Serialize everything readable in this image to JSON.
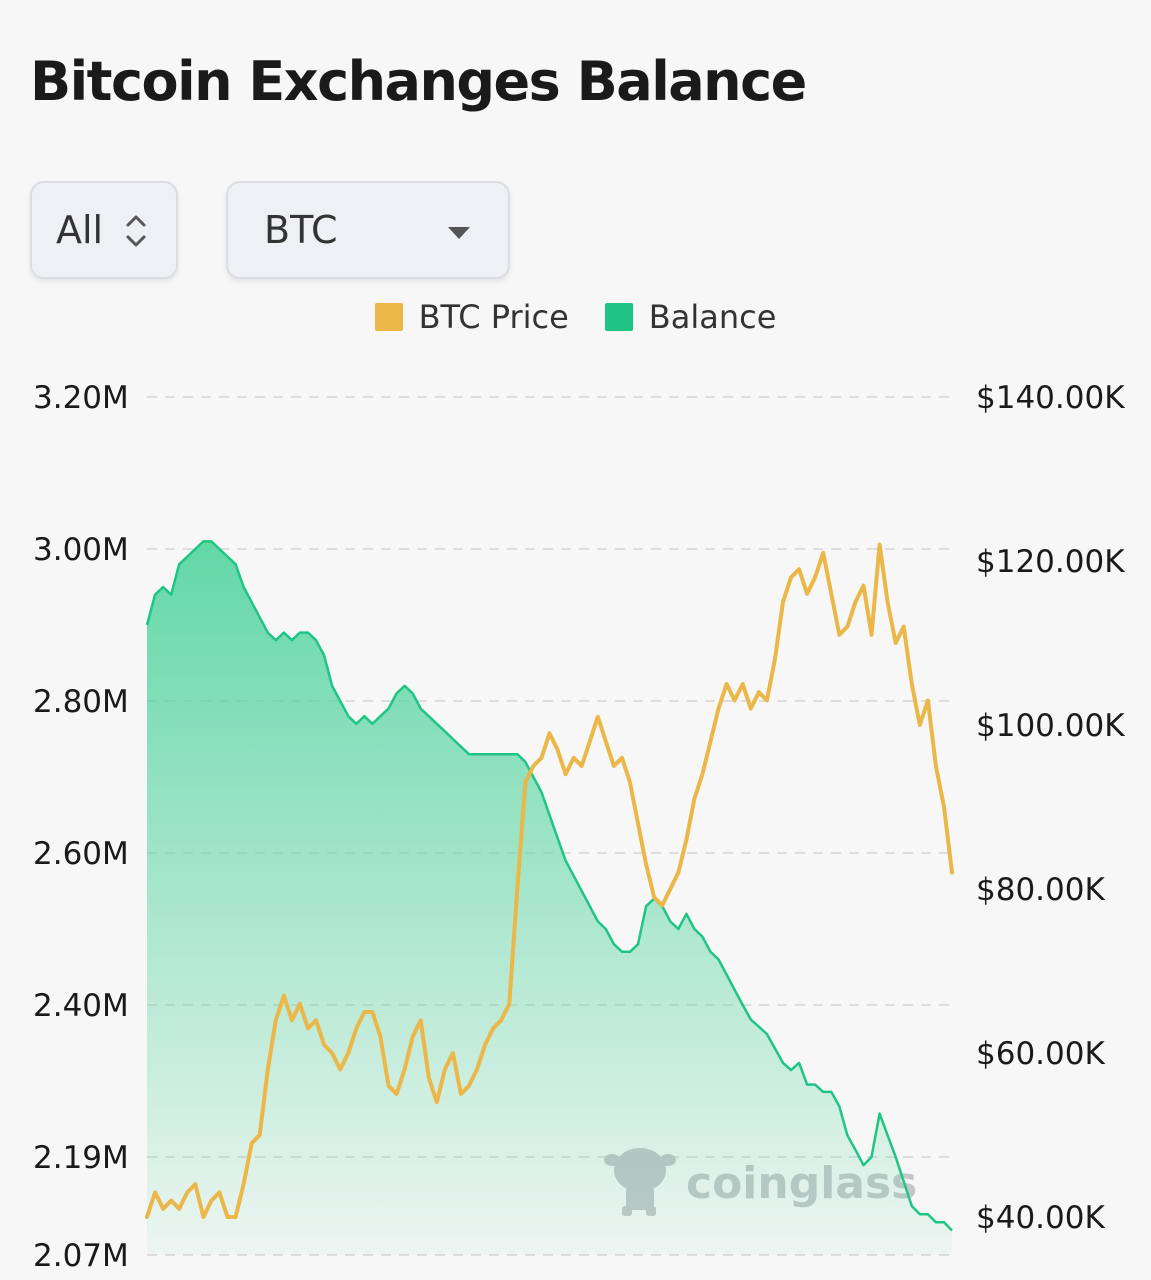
{
  "header": {
    "title": "Bitcoin Exchanges Balance"
  },
  "controls": {
    "range_select": {
      "value": "All",
      "icon": "updown-chevron-icon"
    },
    "coin_select": {
      "value": "BTC",
      "icon": "caret-down-icon"
    }
  },
  "watermark": {
    "text": "coinglass",
    "icon": "bull-mascot-icon"
  },
  "colors": {
    "price": "#ebb748",
    "balance": "#1fc584",
    "balance_fill_top": "#52d49e",
    "grid": "#dddddd"
  },
  "chart_data": {
    "type": "line",
    "legend": [
      "BTC Price",
      "Balance"
    ],
    "legend_position": "top-center",
    "grid": true,
    "x_range": [
      0,
      100
    ],
    "left_axis": {
      "ticks": [
        "3.20M",
        "3.00M",
        "2.80M",
        "2.60M",
        "2.40M",
        "2.19M",
        "2.07M"
      ],
      "tick_values": [
        3.2,
        3.0,
        2.8,
        2.6,
        2.4,
        2.19,
        2.07
      ],
      "unit": "M BTC"
    },
    "right_axis": {
      "ticks": [
        "$140.00K",
        "$120.00K",
        "$100.00K",
        "$80.00K",
        "$60.00K",
        "$40.00K"
      ],
      "tick_values": [
        140,
        120,
        100,
        80,
        60,
        40
      ],
      "unit": "K USD"
    },
    "series": [
      {
        "name": "Balance",
        "type": "area",
        "axis": "left",
        "color": "#1fc584",
        "points": [
          [
            0,
            2.9
          ],
          [
            1,
            2.94
          ],
          [
            2,
            2.95
          ],
          [
            3,
            2.94
          ],
          [
            4,
            2.98
          ],
          [
            5,
            2.99
          ],
          [
            6,
            3.0
          ],
          [
            7,
            3.01
          ],
          [
            8,
            3.01
          ],
          [
            9,
            3.0
          ],
          [
            10,
            2.99
          ],
          [
            11,
            2.98
          ],
          [
            12,
            2.95
          ],
          [
            13,
            2.93
          ],
          [
            14,
            2.91
          ],
          [
            15,
            2.89
          ],
          [
            16,
            2.88
          ],
          [
            17,
            2.89
          ],
          [
            18,
            2.88
          ],
          [
            19,
            2.89
          ],
          [
            20,
            2.89
          ],
          [
            21,
            2.88
          ],
          [
            22,
            2.86
          ],
          [
            23,
            2.82
          ],
          [
            24,
            2.8
          ],
          [
            25,
            2.78
          ],
          [
            26,
            2.77
          ],
          [
            27,
            2.78
          ],
          [
            28,
            2.77
          ],
          [
            29,
            2.78
          ],
          [
            30,
            2.79
          ],
          [
            31,
            2.81
          ],
          [
            32,
            2.82
          ],
          [
            33,
            2.81
          ],
          [
            34,
            2.79
          ],
          [
            35,
            2.78
          ],
          [
            36,
            2.77
          ],
          [
            37,
            2.76
          ],
          [
            38,
            2.75
          ],
          [
            39,
            2.74
          ],
          [
            40,
            2.73
          ],
          [
            41,
            2.73
          ],
          [
            42,
            2.73
          ],
          [
            43,
            2.73
          ],
          [
            44,
            2.73
          ],
          [
            45,
            2.73
          ],
          [
            46,
            2.73
          ],
          [
            47,
            2.72
          ],
          [
            48,
            2.7
          ],
          [
            49,
            2.68
          ],
          [
            50,
            2.65
          ],
          [
            51,
            2.62
          ],
          [
            52,
            2.59
          ],
          [
            53,
            2.57
          ],
          [
            54,
            2.55
          ],
          [
            55,
            2.53
          ],
          [
            56,
            2.51
          ],
          [
            57,
            2.5
          ],
          [
            58,
            2.48
          ],
          [
            59,
            2.47
          ],
          [
            60,
            2.47
          ],
          [
            61,
            2.48
          ],
          [
            62,
            2.53
          ],
          [
            63,
            2.54
          ],
          [
            64,
            2.53
          ],
          [
            65,
            2.51
          ],
          [
            66,
            2.5
          ],
          [
            67,
            2.52
          ],
          [
            68,
            2.5
          ],
          [
            69,
            2.49
          ],
          [
            70,
            2.47
          ],
          [
            71,
            2.46
          ],
          [
            72,
            2.44
          ],
          [
            73,
            2.42
          ],
          [
            74,
            2.4
          ],
          [
            75,
            2.38
          ],
          [
            76,
            2.37
          ],
          [
            77,
            2.36
          ],
          [
            78,
            2.34
          ],
          [
            79,
            2.32
          ],
          [
            80,
            2.31
          ],
          [
            81,
            2.32
          ],
          [
            82,
            2.29
          ],
          [
            83,
            2.29
          ],
          [
            84,
            2.28
          ],
          [
            85,
            2.28
          ],
          [
            86,
            2.26
          ],
          [
            87,
            2.22
          ],
          [
            88,
            2.2
          ],
          [
            89,
            2.18
          ],
          [
            90,
            2.19
          ],
          [
            91,
            2.25
          ],
          [
            92,
            2.22
          ],
          [
            93,
            2.19
          ],
          [
            94,
            2.16
          ],
          [
            95,
            2.13
          ],
          [
            96,
            2.12
          ],
          [
            97,
            2.12
          ],
          [
            98,
            2.11
          ],
          [
            99,
            2.11
          ],
          [
            100,
            2.1
          ]
        ]
      },
      {
        "name": "BTC Price",
        "type": "line",
        "axis": "right",
        "color": "#ebb748",
        "points": [
          [
            0,
            40
          ],
          [
            1,
            43
          ],
          [
            2,
            41
          ],
          [
            3,
            42
          ],
          [
            4,
            41
          ],
          [
            5,
            43
          ],
          [
            6,
            44
          ],
          [
            7,
            40
          ],
          [
            8,
            42
          ],
          [
            9,
            43
          ],
          [
            10,
            40
          ],
          [
            11,
            39
          ],
          [
            12,
            44
          ],
          [
            13,
            49
          ],
          [
            14,
            50
          ],
          [
            15,
            58
          ],
          [
            16,
            64
          ],
          [
            17,
            67
          ],
          [
            18,
            64
          ],
          [
            19,
            66
          ],
          [
            20,
            63
          ],
          [
            21,
            64
          ],
          [
            22,
            61
          ],
          [
            23,
            60
          ],
          [
            24,
            58
          ],
          [
            25,
            60
          ],
          [
            26,
            63
          ],
          [
            27,
            65
          ],
          [
            28,
            65
          ],
          [
            29,
            62
          ],
          [
            30,
            56
          ],
          [
            31,
            55
          ],
          [
            32,
            58
          ],
          [
            33,
            62
          ],
          [
            34,
            64
          ],
          [
            35,
            57
          ],
          [
            36,
            54
          ],
          [
            37,
            58
          ],
          [
            38,
            60
          ],
          [
            39,
            55
          ],
          [
            40,
            56
          ],
          [
            41,
            58
          ],
          [
            42,
            61
          ],
          [
            43,
            63
          ],
          [
            44,
            64
          ],
          [
            45,
            66
          ],
          [
            46,
            80
          ],
          [
            47,
            93
          ],
          [
            48,
            95
          ],
          [
            49,
            96
          ],
          [
            50,
            99
          ],
          [
            51,
            97
          ],
          [
            52,
            94
          ],
          [
            53,
            96
          ],
          [
            54,
            95
          ],
          [
            55,
            98
          ],
          [
            56,
            101
          ],
          [
            57,
            98
          ],
          [
            58,
            95
          ],
          [
            59,
            96
          ],
          [
            60,
            93
          ],
          [
            61,
            88
          ],
          [
            62,
            83
          ],
          [
            63,
            79
          ],
          [
            64,
            78
          ],
          [
            65,
            80
          ],
          [
            66,
            82
          ],
          [
            67,
            86
          ],
          [
            68,
            91
          ],
          [
            69,
            94
          ],
          [
            70,
            98
          ],
          [
            71,
            102
          ],
          [
            72,
            105
          ],
          [
            73,
            103
          ],
          [
            74,
            105
          ],
          [
            75,
            102
          ],
          [
            76,
            104
          ],
          [
            77,
            103
          ],
          [
            78,
            108
          ],
          [
            79,
            115
          ],
          [
            80,
            118
          ],
          [
            81,
            119
          ],
          [
            82,
            116
          ],
          [
            83,
            118
          ],
          [
            84,
            121
          ],
          [
            85,
            116
          ],
          [
            86,
            111
          ],
          [
            87,
            112
          ],
          [
            88,
            115
          ],
          [
            89,
            117
          ],
          [
            90,
            111
          ],
          [
            91,
            122
          ],
          [
            92,
            115
          ],
          [
            93,
            110
          ],
          [
            94,
            112
          ],
          [
            95,
            105
          ],
          [
            96,
            100
          ],
          [
            97,
            103
          ],
          [
            98,
            95
          ],
          [
            99,
            90
          ],
          [
            100,
            82
          ]
        ]
      }
    ]
  }
}
